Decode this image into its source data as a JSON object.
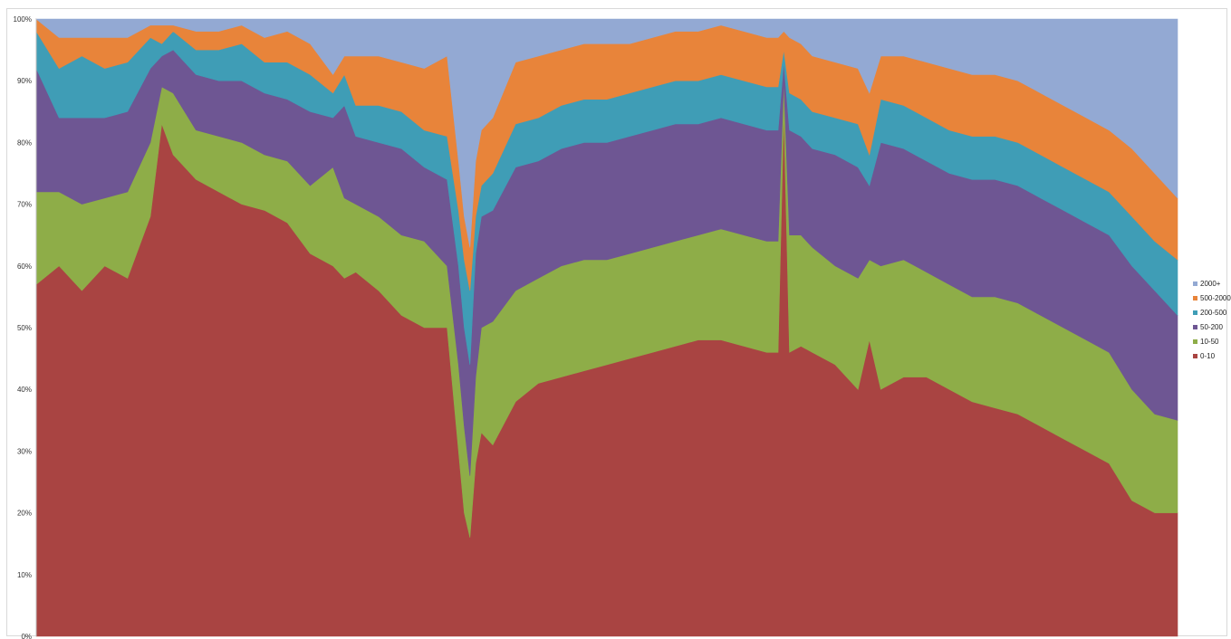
{
  "chart_data": {
    "type": "area",
    "stacked": true,
    "normalized": true,
    "title": "",
    "xlabel": "",
    "ylabel": "",
    "ylim": [
      0,
      100
    ],
    "y_ticks": [
      "0%",
      "10%",
      "20%",
      "30%",
      "40%",
      "50%",
      "60%",
      "70%",
      "80%",
      "90%",
      "100%"
    ],
    "grid": false,
    "legend_position": "right",
    "x": [
      0,
      0.02,
      0.04,
      0.06,
      0.08,
      0.1,
      0.11,
      0.12,
      0.14,
      0.16,
      0.18,
      0.2,
      0.22,
      0.24,
      0.26,
      0.27,
      0.28,
      0.3,
      0.32,
      0.34,
      0.36,
      0.37,
      0.375,
      0.38,
      0.385,
      0.39,
      0.4,
      0.42,
      0.44,
      0.46,
      0.48,
      0.5,
      0.52,
      0.54,
      0.56,
      0.58,
      0.6,
      0.62,
      0.64,
      0.65,
      0.655,
      0.66,
      0.67,
      0.68,
      0.7,
      0.72,
      0.73,
      0.74,
      0.76,
      0.78,
      0.8,
      0.82,
      0.84,
      0.86,
      0.88,
      0.9,
      0.92,
      0.94,
      0.96,
      0.98,
      1.0
    ],
    "series": [
      {
        "name": "0-10",
        "color": "#A94442",
        "values": [
          57,
          60,
          56,
          60,
          58,
          68,
          83,
          78,
          74,
          72,
          70,
          69,
          67,
          62,
          60,
          58,
          59,
          56,
          52,
          50,
          50,
          30,
          20,
          16,
          28,
          33,
          31,
          38,
          41,
          42,
          43,
          44,
          45,
          46,
          47,
          48,
          48,
          47,
          46,
          46,
          85,
          46,
          47,
          46,
          44,
          40,
          48,
          40,
          42,
          42,
          40,
          38,
          37,
          36,
          34,
          32,
          30,
          28,
          22,
          20,
          20
        ]
      },
      {
        "name": "10-50",
        "color": "#8EAD48",
        "values": [
          15,
          12,
          14,
          11,
          14,
          12,
          6,
          10,
          8,
          9,
          10,
          9,
          10,
          11,
          16,
          13,
          11,
          12,
          13,
          14,
          10,
          14,
          14,
          10,
          14,
          17,
          20,
          18,
          17,
          18,
          18,
          17,
          17,
          17,
          17,
          17,
          18,
          18,
          18,
          18,
          5,
          19,
          18,
          17,
          16,
          18,
          13,
          20,
          19,
          17,
          17,
          17,
          18,
          18,
          18,
          18,
          18,
          18,
          18,
          16,
          15
        ]
      },
      {
        "name": "50-200",
        "color": "#6E5693",
        "values": [
          20,
          12,
          14,
          13,
          13,
          12,
          5,
          7,
          9,
          9,
          10,
          10,
          10,
          12,
          8,
          15,
          11,
          12,
          14,
          12,
          14,
          16,
          16,
          18,
          20,
          18,
          18,
          20,
          19,
          19,
          19,
          19,
          19,
          19,
          19,
          18,
          18,
          18,
          18,
          18,
          3,
          17,
          16,
          16,
          18,
          18,
          12,
          20,
          18,
          18,
          18,
          19,
          19,
          19,
          19,
          19,
          19,
          19,
          20,
          20,
          17
        ]
      },
      {
        "name": "200-500",
        "color": "#3F9DB6",
        "values": [
          6,
          8,
          10,
          8,
          8,
          5,
          2,
          3,
          4,
          5,
          6,
          5,
          6,
          6,
          4,
          5,
          5,
          6,
          6,
          6,
          7,
          9,
          11,
          12,
          6,
          5,
          6,
          7,
          7,
          7,
          7,
          7,
          7,
          7,
          7,
          7,
          7,
          7,
          7,
          7,
          2,
          6,
          6,
          6,
          6,
          7,
          5,
          7,
          7,
          7,
          7,
          7,
          7,
          7,
          7,
          7,
          7,
          7,
          8,
          8,
          9
        ]
      },
      {
        "name": "500-2000",
        "color": "#E8843A",
        "values": [
          2,
          5,
          3,
          5,
          4,
          2,
          3,
          1,
          3,
          3,
          3,
          4,
          5,
          5,
          3,
          3,
          8,
          8,
          8,
          10,
          13,
          8,
          7,
          7,
          9,
          9,
          9,
          10,
          10,
          9,
          9,
          9,
          8,
          8,
          8,
          8,
          8,
          8,
          8,
          8,
          3,
          9,
          9,
          9,
          9,
          9,
          10,
          7,
          8,
          9,
          10,
          10,
          10,
          10,
          10,
          10,
          10,
          10,
          11,
          11,
          10
        ]
      },
      {
        "name": "2000+",
        "color": "#93A9D3",
        "values": [
          0,
          3,
          3,
          3,
          3,
          1,
          1,
          1,
          2,
          2,
          1,
          3,
          2,
          4,
          9,
          6,
          6,
          6,
          7,
          8,
          6,
          23,
          32,
          37,
          23,
          18,
          16,
          7,
          6,
          5,
          4,
          4,
          4,
          3,
          2,
          2,
          1,
          2,
          3,
          3,
          2,
          3,
          4,
          6,
          7,
          8,
          12,
          6,
          6,
          7,
          8,
          9,
          9,
          10,
          12,
          14,
          16,
          18,
          21,
          25,
          29
        ]
      }
    ]
  }
}
